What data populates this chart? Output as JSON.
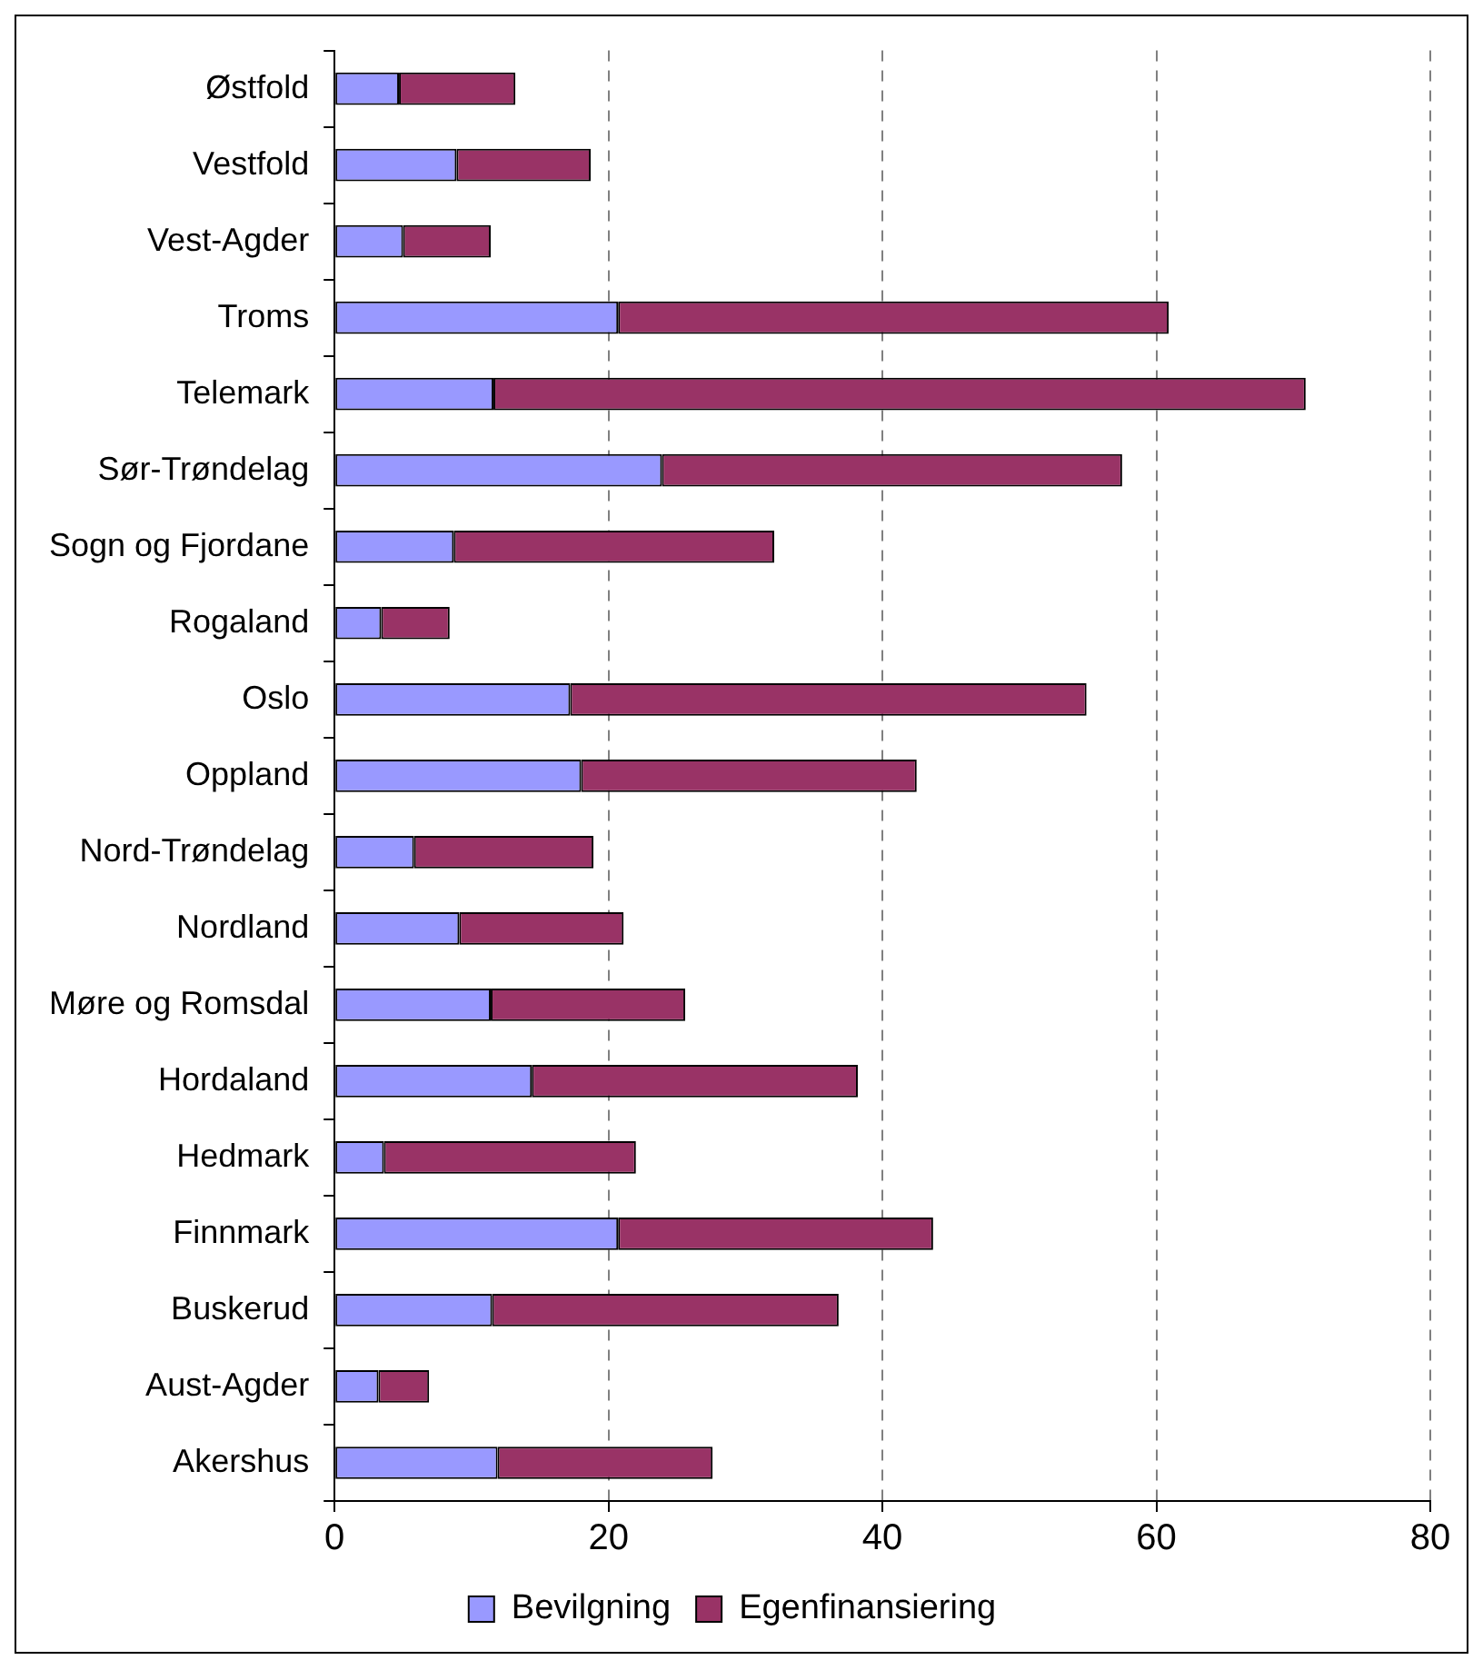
{
  "chart_data": {
    "type": "bar",
    "orientation": "horizontal",
    "stacked": true,
    "categories": [
      "Østfold",
      "Vestfold",
      "Vest-Agder",
      "Troms",
      "Telemark",
      "Sør-Trøndelag",
      "Sogn og Fjordane",
      "Rogaland",
      "Oslo",
      "Oppland",
      "Nord-Trøndelag",
      "Nordland",
      "Møre og Romsdal",
      "Hordaland",
      "Hedmark",
      "Finnmark",
      "Buskerud",
      "Aust-Agder",
      "Akershus"
    ],
    "series": [
      {
        "name": "Bevilgning",
        "color": "#9999ff",
        "values": [
          4.7,
          8.9,
          5.0,
          20.7,
          11.6,
          23.9,
          8.7,
          3.4,
          17.2,
          18.0,
          5.8,
          9.1,
          11.4,
          14.4,
          3.6,
          20.7,
          11.5,
          3.2,
          11.9
        ]
      },
      {
        "name": "Egenfinansiering",
        "color": "#993366",
        "values": [
          8.5,
          9.8,
          6.4,
          40.2,
          59.3,
          33.6,
          23.4,
          5.0,
          37.7,
          24.5,
          13.1,
          12.0,
          14.2,
          23.8,
          18.4,
          23.0,
          25.3,
          3.7,
          15.7
        ]
      }
    ],
    "xlim": [
      0,
      80
    ],
    "xticks": [
      0,
      20,
      40,
      60,
      80
    ],
    "grid": "x",
    "legend": "bottom"
  }
}
